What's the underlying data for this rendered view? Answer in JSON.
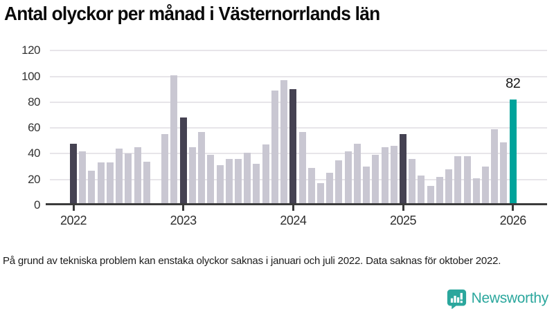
{
  "footnote": "På grund av tekniska problem kan enstaka olyckor saknas i januari och juli 2022. Data saknas för oktober 2022.",
  "brand": {
    "name": "Newsworthy"
  },
  "chart_data": {
    "type": "bar",
    "title": "Antal olyckor per månad i Västernorrlands län",
    "xlabel": "",
    "ylabel": "",
    "ylim": [
      0,
      120
    ],
    "grid": "horizontal",
    "yticks": [
      0,
      20,
      40,
      60,
      80,
      100,
      120
    ],
    "xticks": [
      {
        "label": "2022",
        "month": 0
      },
      {
        "label": "2023",
        "month": 12
      },
      {
        "label": "2024",
        "month": 24
      },
      {
        "label": "2025",
        "month": 36
      },
      {
        "label": "2026",
        "month": 48
      }
    ],
    "annotation": {
      "text": "82",
      "month": 48
    },
    "colors": {
      "dark": "#454252",
      "light": "#c9c7d2",
      "accent": "#00a39b",
      "gridline": "#e7e5e9",
      "axis": "#3b3b3b"
    },
    "months": [
      {
        "date": "2022-01",
        "value": 48,
        "tone": "dark"
      },
      {
        "date": "2022-02",
        "value": 42,
        "tone": "light"
      },
      {
        "date": "2022-03",
        "value": 27,
        "tone": "light"
      },
      {
        "date": "2022-04",
        "value": 33,
        "tone": "light"
      },
      {
        "date": "2022-05",
        "value": 33,
        "tone": "light"
      },
      {
        "date": "2022-06",
        "value": 44,
        "tone": "light"
      },
      {
        "date": "2022-07",
        "value": 40,
        "tone": "light"
      },
      {
        "date": "2022-08",
        "value": 45,
        "tone": "light"
      },
      {
        "date": "2022-09",
        "value": 34,
        "tone": "light"
      },
      {
        "date": "2022-10",
        "value": null,
        "tone": "light"
      },
      {
        "date": "2022-11",
        "value": 55,
        "tone": "light"
      },
      {
        "date": "2022-12",
        "value": 101,
        "tone": "light"
      },
      {
        "date": "2023-01",
        "value": 68,
        "tone": "dark"
      },
      {
        "date": "2023-02",
        "value": 45,
        "tone": "light"
      },
      {
        "date": "2023-03",
        "value": 57,
        "tone": "light"
      },
      {
        "date": "2023-04",
        "value": 39,
        "tone": "light"
      },
      {
        "date": "2023-05",
        "value": 31,
        "tone": "light"
      },
      {
        "date": "2023-06",
        "value": 36,
        "tone": "light"
      },
      {
        "date": "2023-07",
        "value": 36,
        "tone": "light"
      },
      {
        "date": "2023-08",
        "value": 41,
        "tone": "light"
      },
      {
        "date": "2023-09",
        "value": 32,
        "tone": "light"
      },
      {
        "date": "2023-10",
        "value": 47,
        "tone": "light"
      },
      {
        "date": "2023-11",
        "value": 89,
        "tone": "light"
      },
      {
        "date": "2023-12",
        "value": 97,
        "tone": "light"
      },
      {
        "date": "2024-01",
        "value": 90,
        "tone": "dark"
      },
      {
        "date": "2024-02",
        "value": 57,
        "tone": "light"
      },
      {
        "date": "2024-03",
        "value": 29,
        "tone": "light"
      },
      {
        "date": "2024-04",
        "value": 17,
        "tone": "light"
      },
      {
        "date": "2024-05",
        "value": 25,
        "tone": "light"
      },
      {
        "date": "2024-06",
        "value": 35,
        "tone": "light"
      },
      {
        "date": "2024-07",
        "value": 42,
        "tone": "light"
      },
      {
        "date": "2024-08",
        "value": 48,
        "tone": "light"
      },
      {
        "date": "2024-09",
        "value": 30,
        "tone": "light"
      },
      {
        "date": "2024-10",
        "value": 39,
        "tone": "light"
      },
      {
        "date": "2024-11",
        "value": 45,
        "tone": "light"
      },
      {
        "date": "2024-12",
        "value": 46,
        "tone": "light"
      },
      {
        "date": "2025-01",
        "value": 55,
        "tone": "dark"
      },
      {
        "date": "2025-02",
        "value": 36,
        "tone": "light"
      },
      {
        "date": "2025-03",
        "value": 23,
        "tone": "light"
      },
      {
        "date": "2025-04",
        "value": 15,
        "tone": "light"
      },
      {
        "date": "2025-05",
        "value": 22,
        "tone": "light"
      },
      {
        "date": "2025-06",
        "value": 28,
        "tone": "light"
      },
      {
        "date": "2025-07",
        "value": 38,
        "tone": "light"
      },
      {
        "date": "2025-08",
        "value": 38,
        "tone": "light"
      },
      {
        "date": "2025-09",
        "value": 21,
        "tone": "light"
      },
      {
        "date": "2025-10",
        "value": 30,
        "tone": "light"
      },
      {
        "date": "2025-11",
        "value": 59,
        "tone": "light"
      },
      {
        "date": "2025-12",
        "value": 49,
        "tone": "light"
      },
      {
        "date": "2026-01",
        "value": 82,
        "tone": "accent"
      }
    ]
  }
}
